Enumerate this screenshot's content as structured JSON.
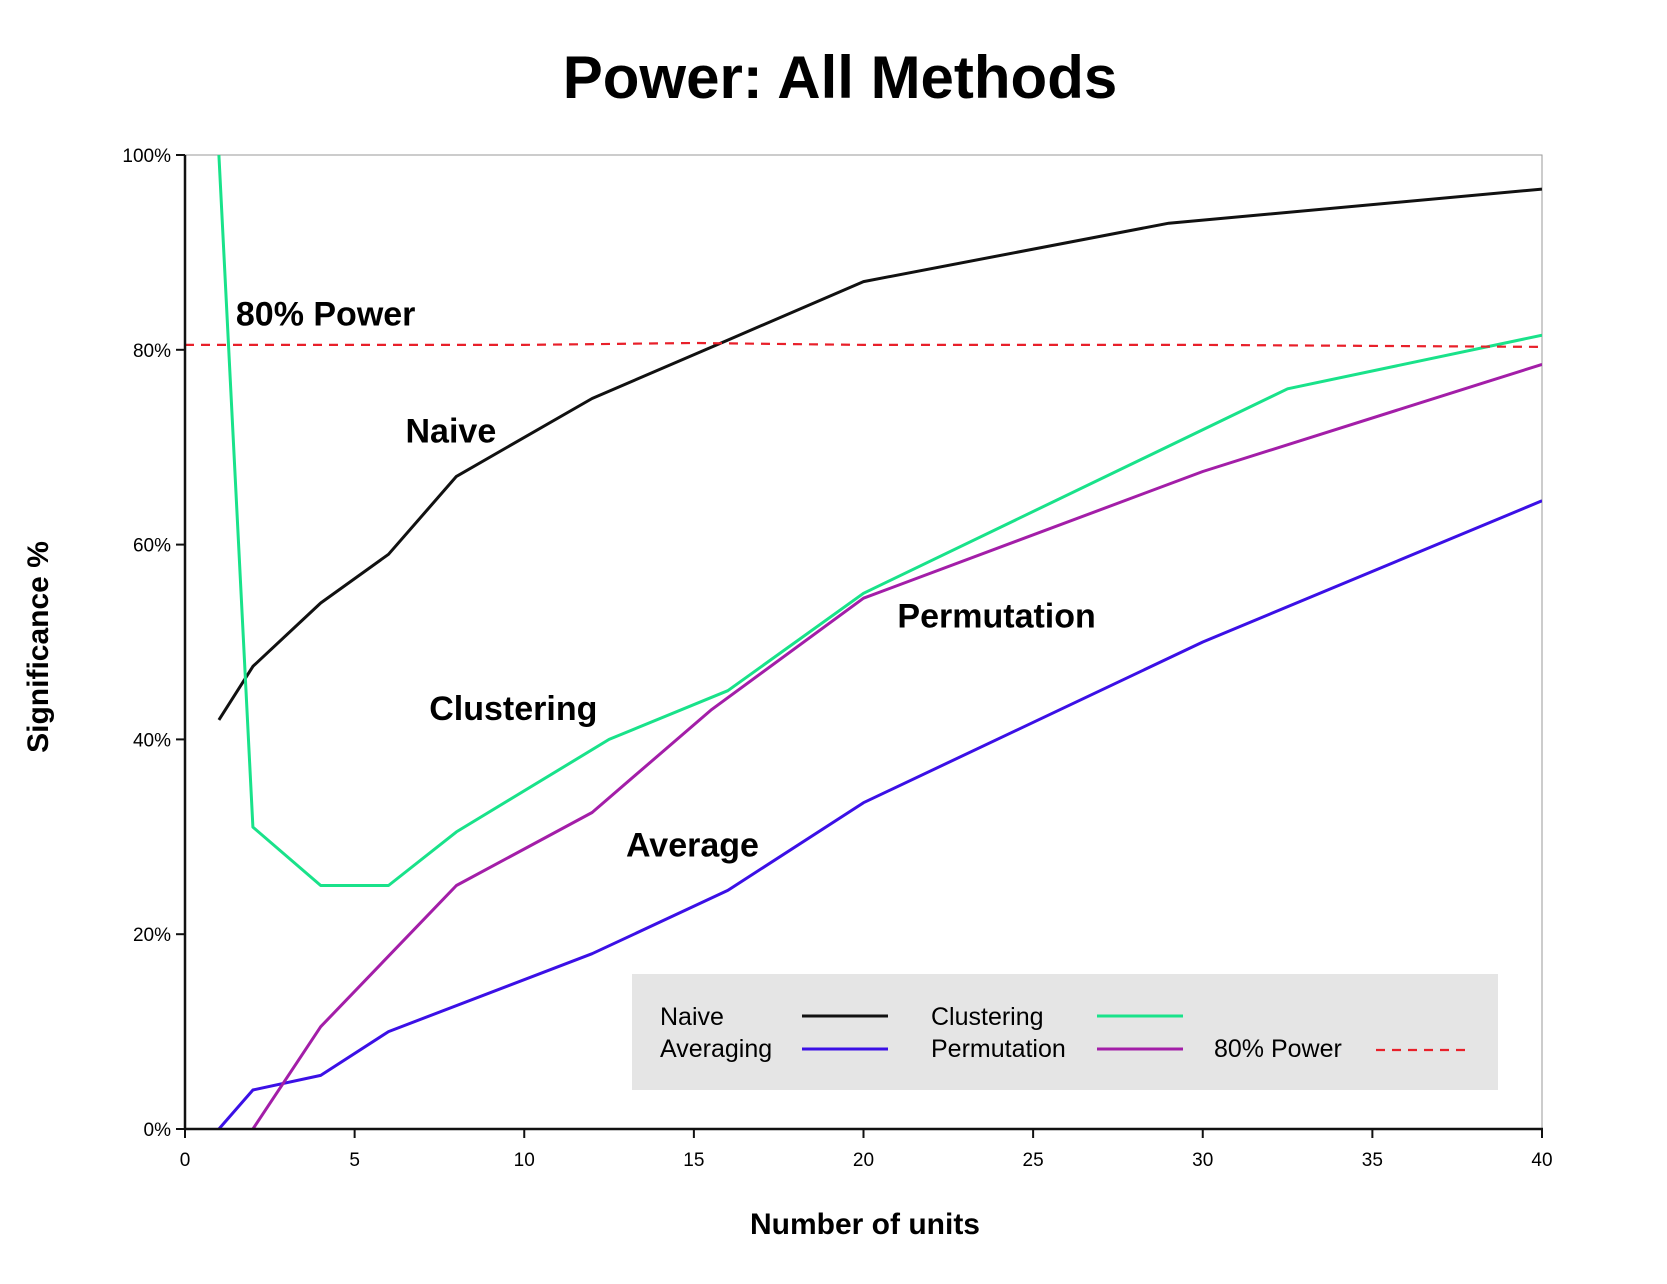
{
  "chart_data": {
    "type": "line",
    "title": "Power: All Methods",
    "xlabel": "Number of units",
    "ylabel": "Significance %",
    "xlim": [
      0,
      40
    ],
    "ylim": [
      0,
      100
    ],
    "x_ticks": [
      0,
      5,
      10,
      15,
      20,
      25,
      30,
      35,
      40
    ],
    "y_ticks": [
      0,
      20,
      40,
      60,
      80,
      100
    ],
    "y_tick_labels": [
      "0%",
      "20%",
      "40%",
      "60%",
      "80%",
      "100%"
    ],
    "grid": false,
    "legend_position": "bottom-right",
    "series": [
      {
        "name": "Naive",
        "color": "#111111",
        "dash": false,
        "x": [
          1,
          2,
          4,
          6,
          8,
          12,
          16,
          20,
          29,
          40
        ],
        "y": [
          42,
          47.5,
          54,
          59,
          67,
          75,
          81,
          87,
          93,
          96.5
        ]
      },
      {
        "name": "Averaging",
        "color": "#3b10e6",
        "dash": false,
        "x": [
          1,
          2,
          4,
          6,
          12,
          16,
          20,
          30,
          40
        ],
        "y": [
          0,
          4,
          5.5,
          10,
          18,
          24.5,
          33.5,
          50,
          64.5
        ]
      },
      {
        "name": "Clustering",
        "color": "#19e28a",
        "dash": false,
        "x": [
          1,
          2,
          4,
          6,
          8,
          12.5,
          16,
          20,
          32.5,
          40
        ],
        "y": [
          100,
          31,
          25,
          25,
          30.5,
          40,
          45,
          55,
          76,
          81.5
        ]
      },
      {
        "name": "Permutation",
        "color": "#a31ea8",
        "dash": false,
        "x": [
          2,
          4,
          8,
          12,
          15.5,
          20,
          30,
          40
        ],
        "y": [
          0,
          10.5,
          25,
          32.5,
          43,
          54.5,
          67.5,
          78.5
        ]
      },
      {
        "name": "80% Power",
        "color": "#e8202a",
        "dash": true,
        "x": [
          0,
          10,
          15,
          20,
          30,
          40
        ],
        "y": [
          80.5,
          80.5,
          80.7,
          80.5,
          80.5,
          80.3
        ]
      }
    ],
    "annotations": [
      {
        "text": "80% Power",
        "x": 1.5,
        "y": 82.5
      },
      {
        "text": "Naive",
        "x": 6.5,
        "y": 70.5
      },
      {
        "text": "Permutation",
        "x": 21,
        "y": 51.5
      },
      {
        "text": "Clustering",
        "x": 7.2,
        "y": 42
      },
      {
        "text": "Average",
        "x": 13,
        "y": 28
      }
    ],
    "legend": [
      {
        "label": "Naive",
        "color": "#111111",
        "dash": false
      },
      {
        "label": "Clustering",
        "color": "#19e28a",
        "dash": false
      },
      {
        "label": "Averaging",
        "color": "#3b10e6",
        "dash": false
      },
      {
        "label": "Permutation",
        "color": "#a31ea8",
        "dash": false
      },
      {
        "label": "80% Power",
        "color": "#e8202a",
        "dash": true
      }
    ],
    "legend_background": "#e5e5e5"
  }
}
